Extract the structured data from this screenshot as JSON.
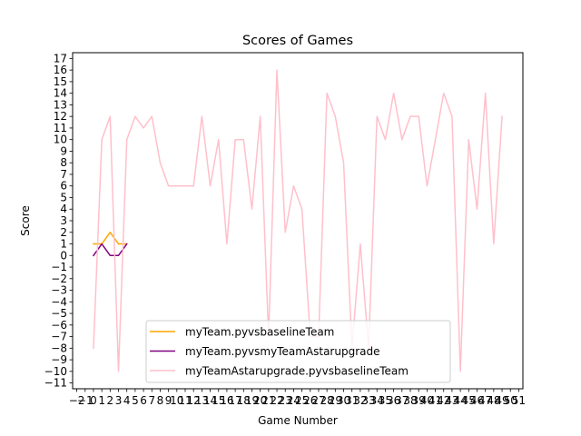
{
  "chart_data": {
    "type": "line",
    "title": "Scores of Games",
    "xlabel": "Game Number",
    "ylabel": "Score",
    "xlim": [
      -2.5,
      51.5
    ],
    "ylim": [
      -11.5,
      17.5
    ],
    "x_ticks": [
      -2,
      -1,
      0,
      1,
      2,
      3,
      4,
      5,
      6,
      7,
      8,
      9,
      10,
      11,
      12,
      13,
      14,
      15,
      16,
      17,
      18,
      19,
      20,
      21,
      22,
      23,
      24,
      25,
      26,
      27,
      28,
      29,
      30,
      31,
      32,
      33,
      34,
      35,
      36,
      37,
      38,
      39,
      40,
      41,
      42,
      43,
      44,
      45,
      46,
      47,
      48,
      49,
      50,
      51
    ],
    "y_ticks": [
      -11,
      -10,
      -9,
      -8,
      -7,
      -6,
      -5,
      -4,
      -3,
      -2,
      -1,
      0,
      1,
      2,
      3,
      4,
      5,
      6,
      7,
      8,
      9,
      10,
      11,
      12,
      13,
      14,
      15,
      16,
      17
    ],
    "grid": false,
    "legend_position": "lower center",
    "series": [
      {
        "name": "myTeam.pyvsbaselineTeam",
        "color": "#ffa500",
        "x": [
          0,
          1,
          2,
          3,
          4
        ],
        "y": [
          1,
          1,
          2,
          1,
          1
        ]
      },
      {
        "name": "myTeam.pyvsmyTeamAstarupgrade",
        "color": "#800080",
        "x": [
          0,
          1,
          2,
          3,
          4
        ],
        "y": [
          0,
          1,
          0,
          0,
          1
        ]
      },
      {
        "name": "myTeamAstarupgrade.pyvsbaselineTeam",
        "color": "#ffc0cb",
        "x": [
          0,
          1,
          2,
          3,
          4,
          5,
          6,
          7,
          8,
          9,
          10,
          11,
          12,
          13,
          14,
          15,
          16,
          17,
          18,
          19,
          20,
          21,
          22,
          23,
          24,
          25,
          26,
          27,
          28,
          29,
          30,
          31,
          32,
          33,
          34,
          35,
          36,
          37,
          38,
          39,
          40,
          41,
          42,
          43,
          44,
          45,
          46,
          47,
          48,
          49
        ],
        "y": [
          -8,
          10,
          12,
          -10,
          10,
          12,
          11,
          12,
          8,
          6,
          6,
          6,
          6,
          12,
          6,
          10,
          1,
          10,
          10,
          4,
          12,
          -7,
          16,
          2,
          6,
          4,
          -7,
          -7,
          14,
          12,
          8,
          -8,
          1,
          -8,
          12,
          10,
          14,
          10,
          12,
          12,
          6,
          10,
          14,
          12,
          -10,
          10,
          4,
          14,
          1,
          12
        ]
      }
    ]
  }
}
